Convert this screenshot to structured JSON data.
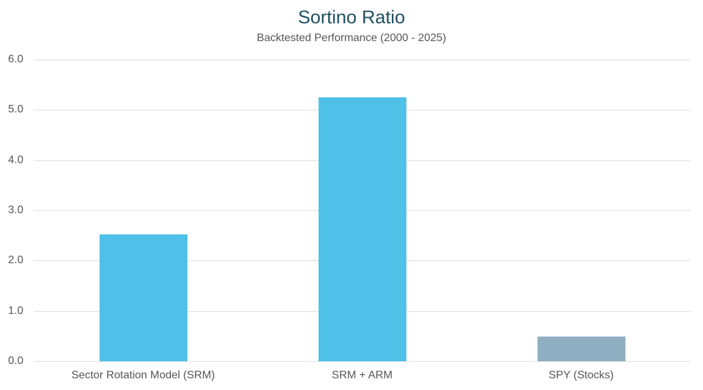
{
  "chart_data": {
    "type": "bar",
    "title": "Sortino Ratio",
    "subtitle": "Backtested Performance (2000 - 2025)",
    "xlabel": "",
    "ylabel": "",
    "categories": [
      "Sector Rotation Model (SRM)",
      "SRM + ARM",
      "SPY (Stocks)"
    ],
    "values": [
      2.52,
      5.25,
      0.49
    ],
    "colors": [
      "#4fc1e8",
      "#4fc1e8",
      "#8fafc2"
    ],
    "ylim": [
      0,
      6
    ],
    "yticks": [
      "0.0",
      "1.0",
      "2.0",
      "3.0",
      "4.0",
      "5.0",
      "6.0"
    ],
    "grid": true,
    "legend": "none"
  }
}
